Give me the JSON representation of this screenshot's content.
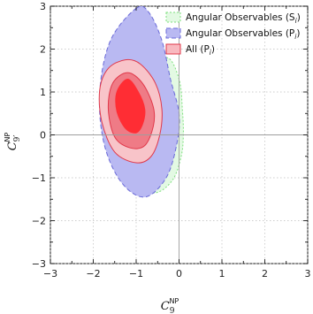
{
  "chart_data": {
    "type": "contour",
    "xlabel": {
      "main": "C",
      "sub": "9",
      "sup": "NP"
    },
    "ylabel": {
      "main": "C",
      "sub": "9′",
      "sup": "NP"
    },
    "xlim": [
      -3,
      3
    ],
    "ylim": [
      -3,
      3
    ],
    "x_ticks": [
      "−3",
      "−2",
      "−1",
      "0",
      "1",
      "2",
      "3"
    ],
    "y_ticks": [
      "−3",
      "−2",
      "−1",
      "0",
      "1",
      "2",
      "3"
    ],
    "grid": "dotted",
    "legend_position": "top-right",
    "legend": [
      {
        "label": "Angular Observables (S",
        "label_sub": "i",
        "color": "#7ee07e",
        "fill": "#e3f9e3",
        "dash": "2,2"
      },
      {
        "label": "Angular Observables (P",
        "label_sub": "i",
        "color": "#6a6ad8",
        "fill": "#b9b9f2",
        "dash": "5,3"
      },
      {
        "label": "All (P",
        "label_sub": "i",
        "color": "#e0384a",
        "fill": "#f8b9bf",
        "dash": ""
      }
    ],
    "series": [
      {
        "name": "Angular Observables (S_i)",
        "fill": "#e3f9e3",
        "stroke": "#7ee07e",
        "dash": "2,2",
        "contour": [
          [
            -0.3,
            1.8
          ],
          [
            0.0,
            1.3
          ],
          [
            0.08,
            0.55
          ],
          [
            0.1,
            0.0
          ],
          [
            0.05,
            -0.5
          ],
          [
            -0.15,
            -1.05
          ],
          [
            -0.55,
            -1.35
          ],
          [
            -1.0,
            -1.15
          ],
          [
            -0.9,
            0.0
          ],
          [
            -0.8,
            1.2
          ]
        ]
      },
      {
        "name": "Angular Observables (P_i)",
        "fill": "#b9b9f2",
        "stroke": "#6a6ad8",
        "dash": "5,3",
        "contour": [
          [
            -1.0,
            2.95
          ],
          [
            -0.7,
            2.85
          ],
          [
            -0.4,
            2.2
          ],
          [
            -0.2,
            1.3
          ],
          [
            0.0,
            0.5
          ],
          [
            -0.05,
            -0.2
          ],
          [
            -0.3,
            -1.0
          ],
          [
            -0.8,
            -1.45
          ],
          [
            -1.35,
            -1.1
          ],
          [
            -1.75,
            -0.2
          ],
          [
            -1.85,
            1.0
          ],
          [
            -1.6,
            2.2
          ]
        ]
      },
      {
        "name": "All (P_i) 3σ",
        "fill": "#f8c4c9",
        "stroke": "#e0384a",
        "contour": [
          [
            -1.25,
            1.75
          ],
          [
            -0.9,
            1.65
          ],
          [
            -0.55,
            1.2
          ],
          [
            -0.4,
            0.6
          ],
          [
            -0.45,
            0.0
          ],
          [
            -0.65,
            -0.5
          ],
          [
            -1.0,
            -0.65
          ],
          [
            -1.5,
            -0.4
          ],
          [
            -1.8,
            0.3
          ],
          [
            -1.85,
            1.05
          ],
          [
            -1.65,
            1.55
          ]
        ]
      },
      {
        "name": "All (P_i) 2σ",
        "fill": "#ef7b86",
        "stroke": "#e0384a",
        "contour": [
          [
            -1.2,
            1.45
          ],
          [
            -0.85,
            1.2
          ],
          [
            -0.6,
            0.65
          ],
          [
            -0.6,
            0.2
          ],
          [
            -0.8,
            -0.25
          ],
          [
            -1.15,
            -0.3
          ],
          [
            -1.5,
            -0.05
          ],
          [
            -1.65,
            0.6
          ],
          [
            -1.55,
            1.2
          ]
        ]
      },
      {
        "name": "All (P_i) 1σ",
        "fill": "#ff2d34",
        "stroke": "#ff2d34",
        "contour": [
          [
            -1.2,
            1.3
          ],
          [
            -0.95,
            1.0
          ],
          [
            -0.8,
            0.6
          ],
          [
            -0.85,
            0.25
          ],
          [
            -1.0,
            0.05
          ],
          [
            -1.25,
            0.15
          ],
          [
            -1.45,
            0.55
          ],
          [
            -1.45,
            1.0
          ]
        ]
      }
    ]
  }
}
